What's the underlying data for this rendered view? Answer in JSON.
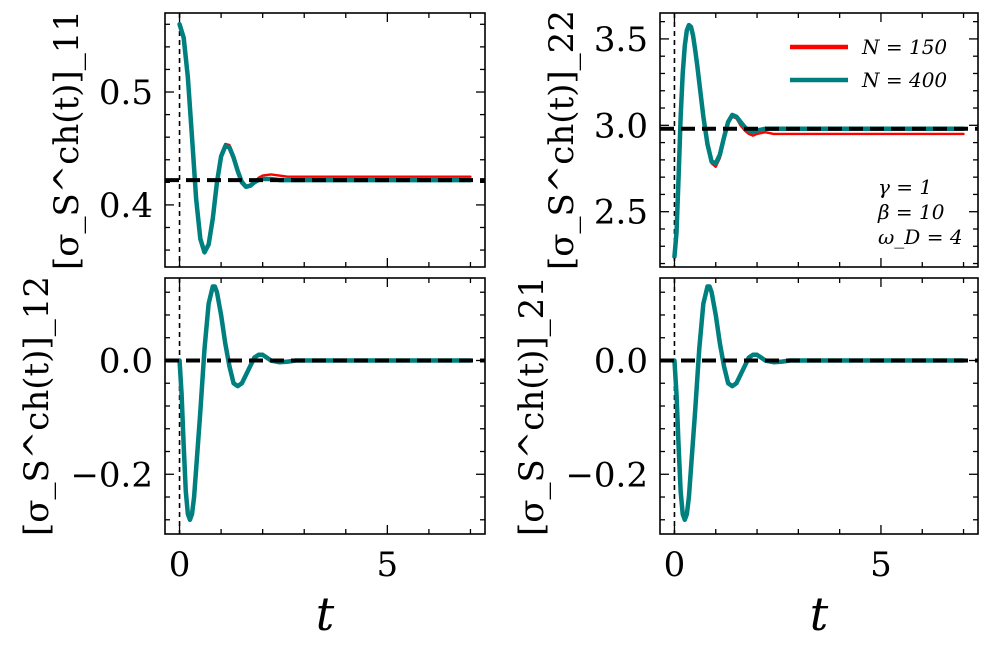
{
  "colors": {
    "n150": "#ff0000",
    "n400": "#007f7f",
    "reference": "#000000"
  },
  "legend": [
    {
      "label": "N = 150",
      "color": "#ff0000"
    },
    {
      "label": "N = 400",
      "color": "#007f7f"
    }
  ],
  "annotation": [
    "γ = 1",
    "β = 10",
    "ω_D = 4"
  ],
  "chart_data": [
    {
      "type": "line",
      "id": "s11",
      "ylabel": "[σ_S^ch(t)]_11",
      "xlim": [
        -0.35,
        7.35
      ],
      "ylim": [
        0.345,
        0.57
      ],
      "xticks": [
        "0",
        "5"
      ],
      "xtick_values": [
        0,
        5
      ],
      "yticks": [
        "0.4",
        "0.5"
      ],
      "ytick_values": [
        0.4,
        0.5
      ],
      "vline_x": 0,
      "hline_y": 0.422,
      "xlabel": "",
      "series": [
        {
          "name": "N = 150",
          "color": "#ff0000",
          "width": 2.4,
          "x": [
            0,
            0.1,
            0.2,
            0.3,
            0.4,
            0.5,
            0.6,
            0.7,
            0.8,
            0.9,
            1.0,
            1.1,
            1.2,
            1.3,
            1.4,
            1.5,
            1.6,
            1.7,
            1.8,
            1.9,
            2.0,
            2.2,
            2.4,
            2.6,
            2.8,
            3.0,
            3.5,
            4.0,
            5.0,
            6.0,
            7.0
          ],
          "y": [
            0.56,
            0.548,
            0.513,
            0.46,
            0.405,
            0.37,
            0.358,
            0.365,
            0.388,
            0.42,
            0.445,
            0.454,
            0.453,
            0.444,
            0.432,
            0.422,
            0.417,
            0.417,
            0.42,
            0.424,
            0.426,
            0.427,
            0.426,
            0.425,
            0.425,
            0.425,
            0.425,
            0.425,
            0.425,
            0.425,
            0.425
          ]
        },
        {
          "name": "N = 400",
          "color": "#007f7f",
          "width": 4.5,
          "x": [
            0,
            0.1,
            0.2,
            0.3,
            0.4,
            0.5,
            0.6,
            0.7,
            0.8,
            0.9,
            1.0,
            1.1,
            1.2,
            1.3,
            1.4,
            1.5,
            1.6,
            1.7,
            1.8,
            1.9,
            2.0,
            2.2,
            2.4,
            2.6,
            2.8,
            3.0,
            3.5,
            4.0,
            5.0,
            6.0,
            7.0
          ],
          "y": [
            0.56,
            0.548,
            0.513,
            0.46,
            0.405,
            0.37,
            0.358,
            0.365,
            0.388,
            0.42,
            0.443,
            0.452,
            0.451,
            0.442,
            0.43,
            0.42,
            0.416,
            0.417,
            0.42,
            0.422,
            0.423,
            0.423,
            0.422,
            0.422,
            0.422,
            0.422,
            0.422,
            0.422,
            0.422,
            0.422,
            0.422
          ]
        }
      ]
    },
    {
      "type": "line",
      "id": "s22",
      "ylabel": "[σ_S^ch(t)]_22",
      "xlim": [
        -0.35,
        7.35
      ],
      "ylim": [
        2.18,
        3.65
      ],
      "xticks": [
        "0",
        "5"
      ],
      "xtick_values": [
        0,
        5
      ],
      "yticks": [
        "2.5",
        "3.0",
        "3.5"
      ],
      "ytick_values": [
        2.5,
        3.0,
        3.5
      ],
      "vline_x": 0,
      "hline_y": 2.98,
      "xlabel": "",
      "series": [
        {
          "name": "N = 150",
          "color": "#ff0000",
          "width": 2.4,
          "x": [
            0,
            0.05,
            0.1,
            0.15,
            0.2,
            0.25,
            0.3,
            0.35,
            0.4,
            0.45,
            0.5,
            0.55,
            0.6,
            0.7,
            0.8,
            0.9,
            1.0,
            1.1,
            1.2,
            1.3,
            1.4,
            1.5,
            1.6,
            1.7,
            1.8,
            1.9,
            2.0,
            2.2,
            2.4,
            2.6,
            2.8,
            3.0,
            3.5,
            4.0,
            5.0,
            6.0,
            7.0
          ],
          "y": [
            2.24,
            2.38,
            2.7,
            3.05,
            3.3,
            3.46,
            3.55,
            3.58,
            3.57,
            3.52,
            3.44,
            3.35,
            3.25,
            3.05,
            2.88,
            2.78,
            2.76,
            2.81,
            2.92,
            3.01,
            3.05,
            3.04,
            3.0,
            2.97,
            2.95,
            2.94,
            2.95,
            2.96,
            2.95,
            2.95,
            2.95,
            2.95,
            2.95,
            2.95,
            2.95,
            2.95,
            2.95
          ]
        },
        {
          "name": "N = 400",
          "color": "#007f7f",
          "width": 4.5,
          "x": [
            0,
            0.05,
            0.1,
            0.15,
            0.2,
            0.25,
            0.3,
            0.35,
            0.4,
            0.45,
            0.5,
            0.55,
            0.6,
            0.7,
            0.8,
            0.9,
            1.0,
            1.1,
            1.2,
            1.3,
            1.4,
            1.5,
            1.6,
            1.7,
            1.8,
            1.9,
            2.0,
            2.2,
            2.4,
            2.6,
            2.8,
            3.0,
            3.5,
            4.0,
            5.0,
            6.0,
            7.0
          ],
          "y": [
            2.24,
            2.38,
            2.7,
            3.05,
            3.3,
            3.46,
            3.55,
            3.58,
            3.57,
            3.52,
            3.44,
            3.35,
            3.25,
            3.05,
            2.89,
            2.79,
            2.78,
            2.83,
            2.93,
            3.02,
            3.06,
            3.05,
            3.02,
            2.99,
            2.97,
            2.96,
            2.97,
            2.98,
            2.98,
            2.98,
            2.98,
            2.98,
            2.98,
            2.98,
            2.98,
            2.98,
            2.98
          ]
        }
      ]
    },
    {
      "type": "line",
      "id": "s12",
      "ylabel": "[σ_S^ch(t)]_12",
      "xlim": [
        -0.35,
        7.35
      ],
      "ylim": [
        -0.305,
        0.145
      ],
      "xticks": [
        "0",
        "5"
      ],
      "xtick_values": [
        0,
        5
      ],
      "yticks": [
        "−0.2",
        "0.0"
      ],
      "ytick_values": [
        -0.2,
        0.0
      ],
      "vline_x": 0,
      "hline_y": 0.0,
      "xlabel": "t",
      "series": [
        {
          "name": "N = 150",
          "color": "#ff0000",
          "width": 2.4,
          "x": [
            0,
            0.05,
            0.1,
            0.15,
            0.2,
            0.25,
            0.3,
            0.35,
            0.4,
            0.5,
            0.6,
            0.7,
            0.8,
            0.85,
            0.9,
            1.0,
            1.1,
            1.2,
            1.3,
            1.4,
            1.5,
            1.6,
            1.7,
            1.8,
            1.9,
            2.0,
            2.1,
            2.2,
            2.4,
            2.6,
            2.8,
            3.0,
            3.5,
            4.0,
            5.0,
            6.0,
            7.0
          ],
          "y": [
            0,
            -0.06,
            -0.15,
            -0.23,
            -0.27,
            -0.28,
            -0.27,
            -0.24,
            -0.19,
            -0.09,
            0.02,
            0.1,
            0.13,
            0.13,
            0.12,
            0.08,
            0.03,
            -0.01,
            -0.04,
            -0.045,
            -0.04,
            -0.025,
            -0.01,
            0.005,
            0.01,
            0.01,
            0.005,
            0.0,
            -0.003,
            -0.002,
            0,
            0,
            0,
            0,
            0,
            0,
            0
          ]
        },
        {
          "name": "N = 400",
          "color": "#007f7f",
          "width": 4.5,
          "x": [
            0,
            0.05,
            0.1,
            0.15,
            0.2,
            0.25,
            0.3,
            0.35,
            0.4,
            0.5,
            0.6,
            0.7,
            0.8,
            0.85,
            0.9,
            1.0,
            1.1,
            1.2,
            1.3,
            1.4,
            1.5,
            1.6,
            1.7,
            1.8,
            1.9,
            2.0,
            2.1,
            2.2,
            2.4,
            2.6,
            2.8,
            3.0,
            3.5,
            4.0,
            5.0,
            6.0,
            7.0
          ],
          "y": [
            0,
            -0.06,
            -0.15,
            -0.23,
            -0.27,
            -0.28,
            -0.27,
            -0.24,
            -0.19,
            -0.09,
            0.02,
            0.1,
            0.13,
            0.13,
            0.12,
            0.08,
            0.03,
            -0.01,
            -0.04,
            -0.045,
            -0.04,
            -0.025,
            -0.01,
            0.005,
            0.01,
            0.01,
            0.005,
            0.0,
            -0.003,
            -0.002,
            0,
            0,
            0,
            0,
            0,
            0,
            0
          ]
        }
      ]
    },
    {
      "type": "line",
      "id": "s21",
      "ylabel": "[σ_S^ch(t)]_21",
      "xlim": [
        -0.35,
        7.35
      ],
      "ylim": [
        -0.305,
        0.145
      ],
      "xticks": [
        "0",
        "5"
      ],
      "xtick_values": [
        0,
        5
      ],
      "yticks": [
        "−0.2",
        "0.0"
      ],
      "ytick_values": [
        -0.2,
        0.0
      ],
      "vline_x": 0,
      "hline_y": 0.0,
      "xlabel": "t",
      "series": [
        {
          "name": "N = 150",
          "color": "#ff0000",
          "width": 2.4,
          "x": [
            0,
            0.05,
            0.1,
            0.15,
            0.2,
            0.25,
            0.3,
            0.35,
            0.4,
            0.5,
            0.6,
            0.7,
            0.8,
            0.85,
            0.9,
            1.0,
            1.1,
            1.2,
            1.3,
            1.4,
            1.5,
            1.6,
            1.7,
            1.8,
            1.9,
            2.0,
            2.1,
            2.2,
            2.4,
            2.6,
            2.8,
            3.0,
            3.5,
            4.0,
            5.0,
            6.0,
            7.0
          ],
          "y": [
            0,
            -0.06,
            -0.15,
            -0.23,
            -0.27,
            -0.28,
            -0.27,
            -0.24,
            -0.19,
            -0.09,
            0.02,
            0.1,
            0.13,
            0.13,
            0.12,
            0.08,
            0.03,
            -0.01,
            -0.04,
            -0.045,
            -0.04,
            -0.025,
            -0.01,
            0.005,
            0.01,
            0.01,
            0.005,
            0.0,
            -0.003,
            -0.002,
            0,
            0,
            0,
            0,
            0,
            0,
            0
          ]
        },
        {
          "name": "N = 400",
          "color": "#007f7f",
          "width": 4.5,
          "x": [
            0,
            0.05,
            0.1,
            0.15,
            0.2,
            0.25,
            0.3,
            0.35,
            0.4,
            0.5,
            0.6,
            0.7,
            0.8,
            0.85,
            0.9,
            1.0,
            1.1,
            1.2,
            1.3,
            1.4,
            1.5,
            1.6,
            1.7,
            1.8,
            1.9,
            2.0,
            2.1,
            2.2,
            2.4,
            2.6,
            2.8,
            3.0,
            3.5,
            4.0,
            5.0,
            6.0,
            7.0
          ],
          "y": [
            0,
            -0.06,
            -0.15,
            -0.23,
            -0.27,
            -0.28,
            -0.27,
            -0.24,
            -0.19,
            -0.09,
            0.02,
            0.1,
            0.13,
            0.13,
            0.12,
            0.08,
            0.03,
            -0.01,
            -0.04,
            -0.045,
            -0.04,
            -0.025,
            -0.01,
            0.005,
            0.01,
            0.01,
            0.005,
            0.0,
            -0.003,
            -0.002,
            0,
            0,
            0,
            0,
            0,
            0,
            0
          ]
        }
      ]
    }
  ]
}
